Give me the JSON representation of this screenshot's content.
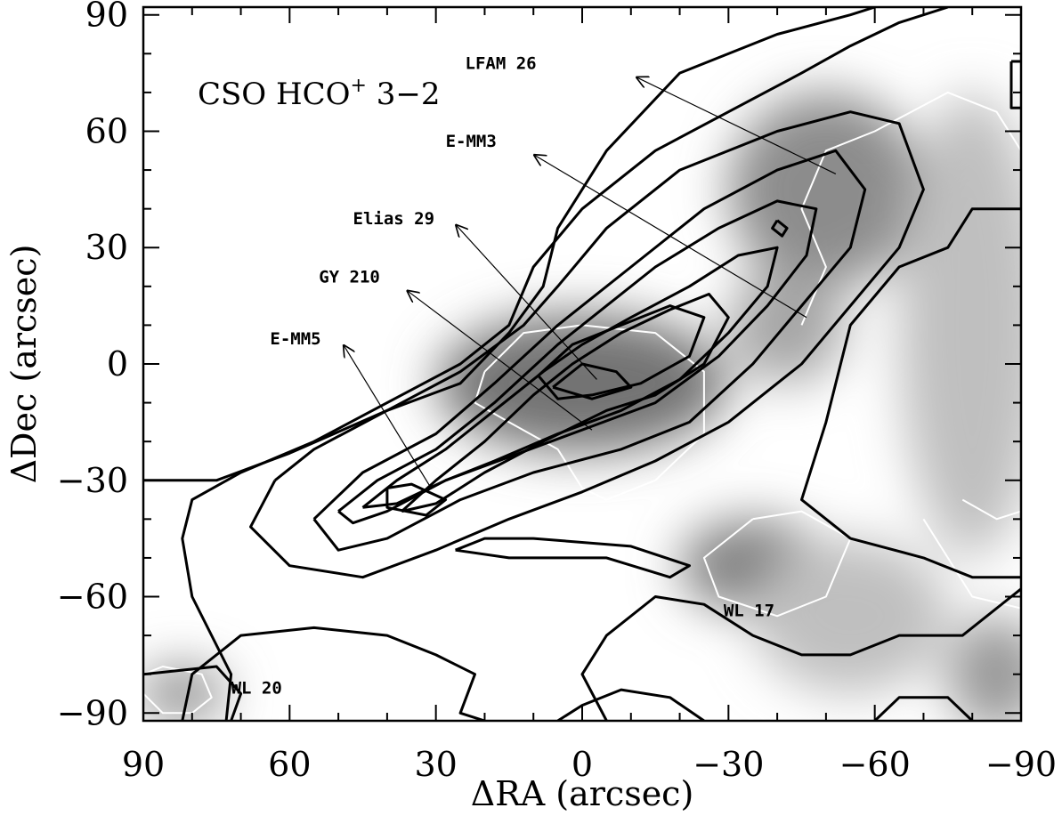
{
  "chart_data": {
    "type": "heatmap",
    "title": "CSO HCO",
    "title_superscript": "+",
    "title_suffix": " 3−2",
    "xlabel": "ΔRA (arcsec)",
    "ylabel": "ΔDec (arcsec)",
    "xlim": [
      90,
      -90
    ],
    "ylim": [
      -92,
      92
    ],
    "x_reversed": true,
    "x_ticks": [
      90,
      60,
      30,
      0,
      -30,
      -60,
      -90
    ],
    "x_tick_labels": [
      "90",
      "60",
      "30",
      "0",
      "−30",
      "−60",
      "−90"
    ],
    "y_ticks": [
      -90,
      -60,
      -30,
      0,
      30,
      60,
      90
    ],
    "y_tick_labels": [
      "−90",
      "−60",
      "−30",
      "0",
      "30",
      "60",
      "90"
    ],
    "grid": false,
    "colormap": "greyscale",
    "contour_color": "#000000",
    "secondary_contour_color": "#ffffff",
    "grey_blobs": [
      {
        "x": 0,
        "y": -5,
        "rx": 30,
        "ry": 18,
        "level": 0.55
      },
      {
        "x": -50,
        "y": 45,
        "rx": 20,
        "ry": 25,
        "level": 0.45
      },
      {
        "x": -35,
        "y": -52,
        "rx": 15,
        "ry": 12,
        "level": 0.5
      },
      {
        "x": 82,
        "y": -85,
        "rx": 9,
        "ry": 7,
        "level": 0.45
      },
      {
        "x": -42,
        "y": 10,
        "rx": 12,
        "ry": 15,
        "level": 0.35
      },
      {
        "x": -80,
        "y": 10,
        "rx": 15,
        "ry": 60,
        "level": 0.25
      },
      {
        "x": -85,
        "y": -80,
        "rx": 10,
        "ry": 15,
        "level": 0.4
      },
      {
        "x": -55,
        "y": -65,
        "rx": 20,
        "ry": 20,
        "level": 0.25
      }
    ],
    "contours": [
      [
        [
          90,
          -30
        ],
        [
          75,
          -30
        ],
        [
          60,
          -23
        ],
        [
          40,
          -12
        ],
        [
          25,
          -5
        ],
        [
          15,
          8
        ],
        [
          8,
          20
        ],
        [
          5,
          35
        ],
        [
          -5,
          55
        ],
        [
          -20,
          75
        ],
        [
          -40,
          85
        ],
        [
          -55,
          90
        ],
        [
          -60,
          92
        ]
      ],
      [
        [
          90,
          -80
        ],
        [
          75,
          -78
        ],
        [
          70,
          -85
        ],
        [
          72,
          -92
        ]
      ],
      [
        [
          -90,
          40
        ],
        [
          -80,
          40
        ],
        [
          -75,
          30
        ],
        [
          -65,
          25
        ],
        [
          -55,
          10
        ],
        [
          -50,
          -15
        ],
        [
          -45,
          -35
        ],
        [
          -55,
          -45
        ],
        [
          -70,
          -50
        ],
        [
          -80,
          -55
        ],
        [
          -90,
          -55
        ]
      ],
      [
        [
          82,
          -92
        ],
        [
          80,
          -80
        ],
        [
          70,
          -70
        ],
        [
          55,
          -68
        ],
        [
          40,
          -70
        ],
        [
          30,
          -75
        ],
        [
          22,
          -80
        ],
        [
          25,
          -90
        ],
        [
          20,
          -92
        ]
      ],
      [
        [
          73,
          -92
        ],
        [
          72,
          -80
        ],
        [
          80,
          -60
        ],
        [
          82,
          -45
        ],
        [
          80,
          -35
        ],
        [
          70,
          -28
        ],
        [
          55,
          -20
        ],
        [
          40,
          -10
        ],
        [
          25,
          0
        ],
        [
          15,
          10
        ],
        [
          10,
          25
        ],
        [
          0,
          40
        ],
        [
          -15,
          55
        ],
        [
          -30,
          65
        ],
        [
          -45,
          75
        ],
        [
          -55,
          82
        ],
        [
          -65,
          88
        ],
        [
          -75,
          92
        ]
      ],
      [
        [
          -5,
          -92
        ],
        [
          0,
          -80
        ],
        [
          -5,
          -70
        ],
        [
          -15,
          -60
        ],
        [
          -25,
          -62
        ],
        [
          -35,
          -70
        ],
        [
          -45,
          -75
        ],
        [
          -55,
          -75
        ],
        [
          -65,
          -70
        ],
        [
          -78,
          -70
        ],
        [
          -88,
          -60
        ],
        [
          -90,
          -58
        ]
      ],
      [
        [
          63,
          -30
        ],
        [
          55,
          -22
        ],
        [
          40,
          -12
        ],
        [
          25,
          -2
        ],
        [
          12,
          10
        ],
        [
          5,
          20
        ],
        [
          -5,
          35
        ],
        [
          -20,
          50
        ],
        [
          -40,
          60
        ],
        [
          -55,
          65
        ],
        [
          -65,
          62
        ],
        [
          -70,
          45
        ],
        [
          -65,
          30
        ],
        [
          -55,
          15
        ],
        [
          -45,
          0
        ],
        [
          -30,
          -15
        ],
        [
          -15,
          -25
        ],
        [
          0,
          -33
        ],
        [
          15,
          -40
        ],
        [
          30,
          -48
        ],
        [
          45,
          -55
        ],
        [
          60,
          -52
        ],
        [
          68,
          -42
        ],
        [
          63,
          -30
        ]
      ],
      [
        [
          55,
          -40
        ],
        [
          45,
          -28
        ],
        [
          30,
          -18
        ],
        [
          18,
          -5
        ],
        [
          5,
          10
        ],
        [
          -10,
          25
        ],
        [
          -25,
          40
        ],
        [
          -40,
          50
        ],
        [
          -52,
          55
        ],
        [
          -58,
          45
        ],
        [
          -55,
          30
        ],
        [
          -45,
          15
        ],
        [
          -35,
          0
        ],
        [
          -22,
          -15
        ],
        [
          -8,
          -22
        ],
        [
          10,
          -28
        ],
        [
          25,
          -35
        ],
        [
          40,
          -45
        ],
        [
          50,
          -48
        ],
        [
          55,
          -40
        ]
      ],
      [
        [
          50,
          -38
        ],
        [
          42,
          -30
        ],
        [
          30,
          -22
        ],
        [
          18,
          -10
        ],
        [
          5,
          5
        ],
        [
          -5,
          15
        ],
        [
          -15,
          25
        ],
        [
          -28,
          35
        ],
        [
          -40,
          42
        ],
        [
          -48,
          40
        ],
        [
          -46,
          28
        ],
        [
          -38,
          15
        ],
        [
          -28,
          2
        ],
        [
          -15,
          -10
        ],
        [
          0,
          -17
        ],
        [
          15,
          -24
        ],
        [
          28,
          -30
        ],
        [
          40,
          -38
        ],
        [
          47,
          -41
        ],
        [
          50,
          -38
        ]
      ],
      [
        [
          45,
          -37
        ],
        [
          38,
          -30
        ],
        [
          28,
          -22
        ],
        [
          18,
          -12
        ],
        [
          8,
          -2
        ],
        [
          0,
          5
        ],
        [
          -10,
          12
        ],
        [
          -22,
          20
        ],
        [
          -32,
          28
        ],
        [
          -40,
          30
        ],
        [
          -38,
          20
        ],
        [
          -30,
          8
        ],
        [
          -20,
          -4
        ],
        [
          -8,
          -12
        ],
        [
          5,
          -18
        ],
        [
          18,
          -25
        ],
        [
          28,
          -30
        ],
        [
          38,
          -36
        ],
        [
          45,
          -37
        ]
      ],
      [
        [
          37,
          -38
        ],
        [
          30,
          -30
        ],
        [
          20,
          -20
        ],
        [
          10,
          -8
        ],
        [
          2,
          0
        ],
        [
          -8,
          8
        ],
        [
          -18,
          14
        ],
        [
          -26,
          18
        ],
        [
          -30,
          12
        ],
        [
          -25,
          0
        ],
        [
          -15,
          -8
        ],
        [
          -5,
          -12
        ],
        [
          8,
          -20
        ],
        [
          20,
          -28
        ],
        [
          30,
          -36
        ],
        [
          37,
          -38
        ]
      ],
      [
        [
          9,
          -3
        ],
        [
          2,
          5
        ],
        [
          -8,
          10
        ],
        [
          -18,
          15
        ],
        [
          -25,
          12
        ],
        [
          -22,
          2
        ],
        [
          -12,
          -5
        ],
        [
          -2,
          -8
        ],
        [
          5,
          -9
        ],
        [
          9,
          -3
        ]
      ],
      [
        [
          6,
          -6
        ],
        [
          0,
          0
        ],
        [
          -7,
          -2
        ],
        [
          -10,
          -6
        ],
        [
          -2,
          -9
        ],
        [
          6,
          -6
        ]
      ],
      [
        [
          40,
          -32
        ],
        [
          35,
          -31
        ],
        [
          28,
          -35
        ],
        [
          32,
          -39
        ],
        [
          40,
          -37
        ],
        [
          40,
          -32
        ]
      ],
      [
        [
          26,
          -48
        ],
        [
          20,
          -45
        ],
        [
          10,
          -45
        ],
        [
          -10,
          -47
        ],
        [
          -22,
          -52
        ],
        [
          -18,
          -55
        ],
        [
          -5,
          -50
        ],
        [
          15,
          -50
        ],
        [
          26,
          -48
        ]
      ],
      [
        [
          -40,
          37
        ],
        [
          -42,
          35
        ],
        [
          -41,
          33
        ],
        [
          -39,
          35
        ],
        [
          -40,
          37
        ]
      ],
      [
        [
          -88,
          78
        ],
        [
          -92,
          78
        ],
        [
          -92,
          66
        ],
        [
          -88,
          66
        ],
        [
          -88,
          78
        ]
      ],
      [
        [
          -25,
          -92
        ],
        [
          -18,
          -86
        ],
        [
          -8,
          -84
        ],
        [
          0,
          -88
        ],
        [
          5,
          -92
        ]
      ],
      [
        [
          -60,
          -92
        ],
        [
          -65,
          -86
        ],
        [
          -75,
          -86
        ],
        [
          -80,
          -92
        ]
      ]
    ],
    "white_contours": [
      [
        [
          90,
          -80
        ],
        [
          86,
          -78
        ],
        [
          78,
          -80
        ],
        [
          76,
          -86
        ],
        [
          80,
          -90
        ],
        [
          86,
          -90
        ],
        [
          90,
          -85
        ]
      ],
      [
        [
          30,
          -30
        ],
        [
          25,
          -32
        ],
        [
          22,
          -38
        ],
        [
          25,
          -42
        ],
        [
          32,
          -40
        ],
        [
          34,
          -34
        ],
        [
          30,
          -30
        ]
      ],
      [
        [
          20,
          -2
        ],
        [
          12,
          8
        ],
        [
          0,
          10
        ],
        [
          -15,
          8
        ],
        [
          -25,
          -2
        ],
        [
          -25,
          -18
        ],
        [
          -15,
          -30
        ],
        [
          -5,
          -35
        ],
        [
          0,
          -32
        ],
        [
          5,
          -22
        ],
        [
          15,
          -15
        ],
        [
          22,
          -10
        ],
        [
          20,
          -2
        ]
      ],
      [
        [
          -35,
          -40
        ],
        [
          -45,
          -38
        ],
        [
          -55,
          -45
        ],
        [
          -50,
          -60
        ],
        [
          -40,
          -65
        ],
        [
          -28,
          -60
        ],
        [
          -25,
          -50
        ],
        [
          -35,
          -40
        ]
      ],
      [
        [
          -45,
          10
        ],
        [
          -50,
          25
        ],
        [
          -45,
          40
        ],
        [
          -50,
          55
        ],
        [
          -60,
          60
        ],
        [
          -75,
          70
        ],
        [
          -85,
          65
        ],
        [
          -90,
          55
        ]
      ],
      [
        [
          -70,
          -40
        ],
        [
          -75,
          -50
        ],
        [
          -80,
          -60
        ],
        [
          -90,
          -63
        ]
      ],
      [
        [
          -78,
          -35
        ],
        [
          -85,
          -40
        ],
        [
          -90,
          -38
        ]
      ]
    ],
    "annotations": [
      {
        "text": "LFAM 26",
        "x": 24,
        "y": 76,
        "arrow_from": [
          -52,
          49
        ],
        "arrow_to": [
          -11,
          74
        ]
      },
      {
        "text": "E-MM3",
        "x": 28,
        "y": 56,
        "arrow_from": [
          -46,
          12
        ],
        "arrow_to": [
          10,
          54
        ]
      },
      {
        "text": "Elias 29",
        "x": 47,
        "y": 36,
        "arrow_from": [
          -3,
          -4
        ],
        "arrow_to": [
          26,
          36
        ]
      },
      {
        "text": "GY 210",
        "x": 54,
        "y": 21,
        "arrow_from": [
          -2,
          -17
        ],
        "arrow_to": [
          36,
          19
        ]
      },
      {
        "text": "E-MM5",
        "x": 64,
        "y": 5,
        "arrow_from": [
          31,
          -32
        ],
        "arrow_to": [
          49,
          5
        ]
      },
      {
        "text": "WL 17",
        "x": -29,
        "y": -65
      },
      {
        "text": "WL 20",
        "x": 72,
        "y": -85
      }
    ]
  }
}
